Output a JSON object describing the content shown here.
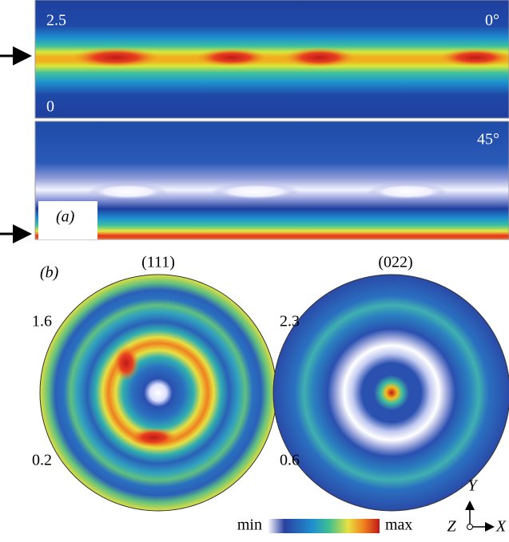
{
  "panel_a": {
    "label": "(a)",
    "top": {
      "max": "2.5",
      "min": "0",
      "angle": "0°"
    },
    "bottom": {
      "angle": "45°"
    }
  },
  "panel_b": {
    "label": "(b)",
    "figures": [
      {
        "title": "(111)",
        "max": "1.6",
        "min": "0.2"
      },
      {
        "title": "(022)",
        "max": "2.3",
        "min": "0.6"
      }
    ]
  },
  "colorbar": {
    "min": "min",
    "max": "max"
  },
  "axes": {
    "y": "Y",
    "z": "Z",
    "x": "X"
  }
}
